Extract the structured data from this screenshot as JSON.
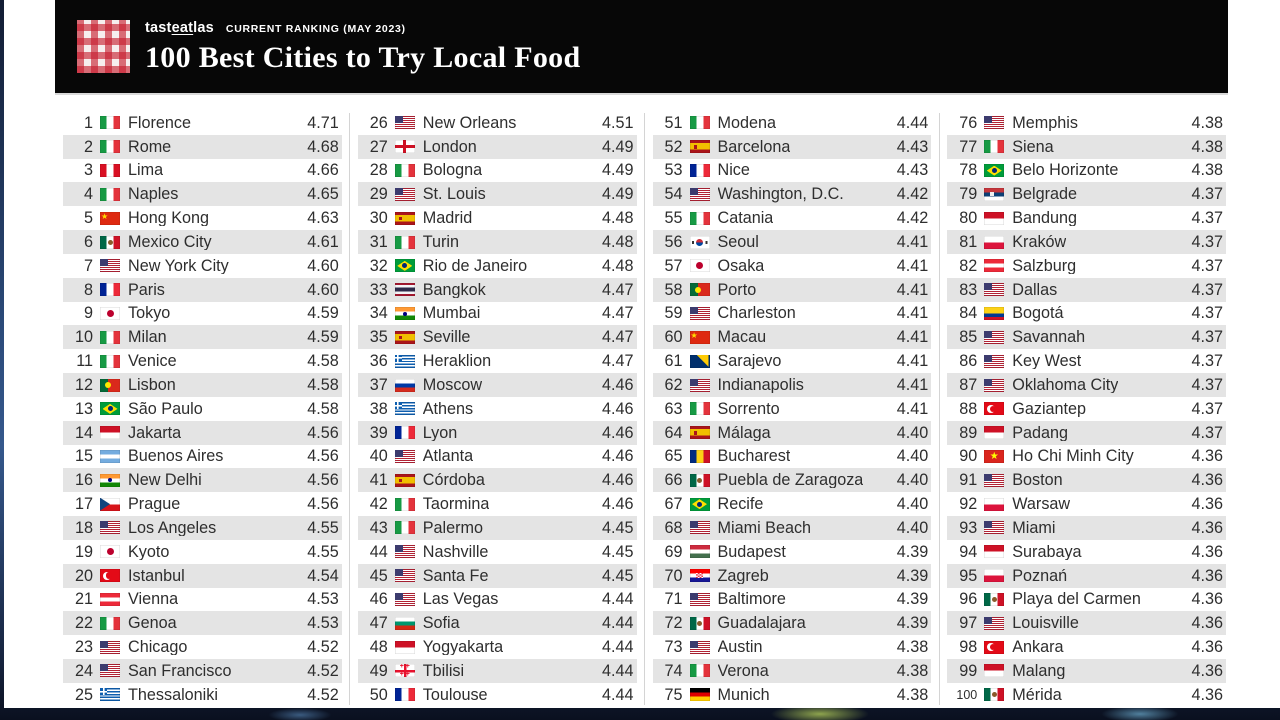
{
  "header": {
    "brand_pre": "tast",
    "brand_underlined": "eat",
    "brand_post": "las",
    "ranking_label": "CURRENT RANKING (MAY 2023)",
    "title": "100 Best Cities to Try Local Food"
  },
  "colors": {
    "header_bg": "#070707",
    "accent_red": "#c61c2d",
    "row_alt": "#e4e4e4",
    "text": "#2e2e2e"
  },
  "chart_data": {
    "type": "table",
    "title": "100 Best Cities to Try Local Food",
    "subtitle": "CURRENT RANKING (MAY 2023)",
    "columns": [
      "rank",
      "country_flag",
      "city",
      "score"
    ],
    "layout": "4 columns of 25 rows, alternating row shading, scores right-aligned",
    "score_range": [
      4.36,
      4.71
    ],
    "rows": [
      {
        "rank": 1,
        "city": "Florence",
        "country": "it",
        "score": "4.71"
      },
      {
        "rank": 2,
        "city": "Rome",
        "country": "it",
        "score": "4.68"
      },
      {
        "rank": 3,
        "city": "Lima",
        "country": "pe",
        "score": "4.66"
      },
      {
        "rank": 4,
        "city": "Naples",
        "country": "it",
        "score": "4.65"
      },
      {
        "rank": 5,
        "city": "Hong Kong",
        "country": "cn",
        "score": "4.63"
      },
      {
        "rank": 6,
        "city": "Mexico City",
        "country": "mx",
        "score": "4.61"
      },
      {
        "rank": 7,
        "city": "New York City",
        "country": "us",
        "score": "4.60"
      },
      {
        "rank": 8,
        "city": "Paris",
        "country": "fr",
        "score": "4.60"
      },
      {
        "rank": 9,
        "city": "Tokyo",
        "country": "jp",
        "score": "4.59"
      },
      {
        "rank": 10,
        "city": "Milan",
        "country": "it",
        "score": "4.59"
      },
      {
        "rank": 11,
        "city": "Venice",
        "country": "it",
        "score": "4.58"
      },
      {
        "rank": 12,
        "city": "Lisbon",
        "country": "pt",
        "score": "4.58"
      },
      {
        "rank": 13,
        "city": "São Paulo",
        "country": "br",
        "score": "4.58"
      },
      {
        "rank": 14,
        "city": "Jakarta",
        "country": "id",
        "score": "4.56"
      },
      {
        "rank": 15,
        "city": "Buenos Aires",
        "country": "ar",
        "score": "4.56"
      },
      {
        "rank": 16,
        "city": "New Delhi",
        "country": "in",
        "score": "4.56"
      },
      {
        "rank": 17,
        "city": "Prague",
        "country": "cz",
        "score": "4.56"
      },
      {
        "rank": 18,
        "city": "Los Angeles",
        "country": "us",
        "score": "4.55"
      },
      {
        "rank": 19,
        "city": "Kyoto",
        "country": "jp",
        "score": "4.55"
      },
      {
        "rank": 20,
        "city": "Istanbul",
        "country": "tr",
        "score": "4.54"
      },
      {
        "rank": 21,
        "city": "Vienna",
        "country": "at",
        "score": "4.53"
      },
      {
        "rank": 22,
        "city": "Genoa",
        "country": "it",
        "score": "4.53"
      },
      {
        "rank": 23,
        "city": "Chicago",
        "country": "us",
        "score": "4.52"
      },
      {
        "rank": 24,
        "city": "San Francisco",
        "country": "us",
        "score": "4.52"
      },
      {
        "rank": 25,
        "city": "Thessaloniki",
        "country": "gr",
        "score": "4.52"
      },
      {
        "rank": 26,
        "city": "New Orleans",
        "country": "us",
        "score": "4.51"
      },
      {
        "rank": 27,
        "city": "London",
        "country": "eng",
        "score": "4.49"
      },
      {
        "rank": 28,
        "city": "Bologna",
        "country": "it",
        "score": "4.49"
      },
      {
        "rank": 29,
        "city": "St. Louis",
        "country": "us",
        "score": "4.49"
      },
      {
        "rank": 30,
        "city": "Madrid",
        "country": "es",
        "score": "4.48"
      },
      {
        "rank": 31,
        "city": "Turin",
        "country": "it",
        "score": "4.48"
      },
      {
        "rank": 32,
        "city": "Rio de Janeiro",
        "country": "br",
        "score": "4.48"
      },
      {
        "rank": 33,
        "city": "Bangkok",
        "country": "th",
        "score": "4.47"
      },
      {
        "rank": 34,
        "city": "Mumbai",
        "country": "in",
        "score": "4.47"
      },
      {
        "rank": 35,
        "city": "Seville",
        "country": "es",
        "score": "4.47"
      },
      {
        "rank": 36,
        "city": "Heraklion",
        "country": "gr",
        "score": "4.47"
      },
      {
        "rank": 37,
        "city": "Moscow",
        "country": "ru",
        "score": "4.46"
      },
      {
        "rank": 38,
        "city": "Athens",
        "country": "gr",
        "score": "4.46"
      },
      {
        "rank": 39,
        "city": "Lyon",
        "country": "fr",
        "score": "4.46"
      },
      {
        "rank": 40,
        "city": "Atlanta",
        "country": "us",
        "score": "4.46"
      },
      {
        "rank": 41,
        "city": "Córdoba",
        "country": "es",
        "score": "4.46"
      },
      {
        "rank": 42,
        "city": "Taormina",
        "country": "it",
        "score": "4.46"
      },
      {
        "rank": 43,
        "city": "Palermo",
        "country": "it",
        "score": "4.45"
      },
      {
        "rank": 44,
        "city": "Nashville",
        "country": "us",
        "score": "4.45"
      },
      {
        "rank": 45,
        "city": "Santa Fe",
        "country": "us",
        "score": "4.45"
      },
      {
        "rank": 46,
        "city": "Las Vegas",
        "country": "us",
        "score": "4.44"
      },
      {
        "rank": 47,
        "city": "Sofia",
        "country": "bg",
        "score": "4.44"
      },
      {
        "rank": 48,
        "city": "Yogyakarta",
        "country": "id",
        "score": "4.44"
      },
      {
        "rank": 49,
        "city": "Tbilisi",
        "country": "ge",
        "score": "4.44"
      },
      {
        "rank": 50,
        "city": "Toulouse",
        "country": "fr",
        "score": "4.44"
      },
      {
        "rank": 51,
        "city": "Modena",
        "country": "it",
        "score": "4.44"
      },
      {
        "rank": 52,
        "city": "Barcelona",
        "country": "es",
        "score": "4.43"
      },
      {
        "rank": 53,
        "city": "Nice",
        "country": "fr",
        "score": "4.43"
      },
      {
        "rank": 54,
        "city": "Washington, D.C.",
        "country": "us",
        "score": "4.42"
      },
      {
        "rank": 55,
        "city": "Catania",
        "country": "it",
        "score": "4.42"
      },
      {
        "rank": 56,
        "city": "Seoul",
        "country": "kr",
        "score": "4.41"
      },
      {
        "rank": 57,
        "city": "Osaka",
        "country": "jp",
        "score": "4.41"
      },
      {
        "rank": 58,
        "city": "Porto",
        "country": "pt",
        "score": "4.41"
      },
      {
        "rank": 59,
        "city": "Charleston",
        "country": "us",
        "score": "4.41"
      },
      {
        "rank": 60,
        "city": "Macau",
        "country": "cn",
        "score": "4.41"
      },
      {
        "rank": 61,
        "city": "Sarajevo",
        "country": "ba",
        "score": "4.41"
      },
      {
        "rank": 62,
        "city": "Indianapolis",
        "country": "us",
        "score": "4.41"
      },
      {
        "rank": 63,
        "city": "Sorrento",
        "country": "it",
        "score": "4.41"
      },
      {
        "rank": 64,
        "city": "Málaga",
        "country": "es",
        "score": "4.40"
      },
      {
        "rank": 65,
        "city": "Bucharest",
        "country": "ro",
        "score": "4.40"
      },
      {
        "rank": 66,
        "city": "Puebla de Zaragoza",
        "country": "mx",
        "score": "4.40"
      },
      {
        "rank": 67,
        "city": "Recife",
        "country": "br",
        "score": "4.40"
      },
      {
        "rank": 68,
        "city": "Miami Beach",
        "country": "us",
        "score": "4.40"
      },
      {
        "rank": 69,
        "city": "Budapest",
        "country": "hu",
        "score": "4.39"
      },
      {
        "rank": 70,
        "city": "Zagreb",
        "country": "hr",
        "score": "4.39"
      },
      {
        "rank": 71,
        "city": "Baltimore",
        "country": "us",
        "score": "4.39"
      },
      {
        "rank": 72,
        "city": "Guadalajara",
        "country": "mx",
        "score": "4.39"
      },
      {
        "rank": 73,
        "city": "Austin",
        "country": "us",
        "score": "4.38"
      },
      {
        "rank": 74,
        "city": "Verona",
        "country": "it",
        "score": "4.38"
      },
      {
        "rank": 75,
        "city": "Munich",
        "country": "de",
        "score": "4.38"
      },
      {
        "rank": 76,
        "city": "Memphis",
        "country": "us",
        "score": "4.38"
      },
      {
        "rank": 77,
        "city": "Siena",
        "country": "it",
        "score": "4.38"
      },
      {
        "rank": 78,
        "city": "Belo Horizonte",
        "country": "br",
        "score": "4.38"
      },
      {
        "rank": 79,
        "city": "Belgrade",
        "country": "rs",
        "score": "4.37"
      },
      {
        "rank": 80,
        "city": "Bandung",
        "country": "id",
        "score": "4.37"
      },
      {
        "rank": 81,
        "city": "Kraków",
        "country": "pl",
        "score": "4.37"
      },
      {
        "rank": 82,
        "city": "Salzburg",
        "country": "at",
        "score": "4.37"
      },
      {
        "rank": 83,
        "city": "Dallas",
        "country": "us",
        "score": "4.37"
      },
      {
        "rank": 84,
        "city": "Bogotá",
        "country": "co",
        "score": "4.37"
      },
      {
        "rank": 85,
        "city": "Savannah",
        "country": "us",
        "score": "4.37"
      },
      {
        "rank": 86,
        "city": "Key West",
        "country": "us",
        "score": "4.37"
      },
      {
        "rank": 87,
        "city": "Oklahoma City",
        "country": "us",
        "score": "4.37"
      },
      {
        "rank": 88,
        "city": "Gaziantep",
        "country": "tr",
        "score": "4.37"
      },
      {
        "rank": 89,
        "city": "Padang",
        "country": "id",
        "score": "4.37"
      },
      {
        "rank": 90,
        "city": "Ho Chi Minh City",
        "country": "vn",
        "score": "4.36"
      },
      {
        "rank": 91,
        "city": "Boston",
        "country": "us",
        "score": "4.36"
      },
      {
        "rank": 92,
        "city": "Warsaw",
        "country": "pl",
        "score": "4.36"
      },
      {
        "rank": 93,
        "city": "Miami",
        "country": "us",
        "score": "4.36"
      },
      {
        "rank": 94,
        "city": "Surabaya",
        "country": "id",
        "score": "4.36"
      },
      {
        "rank": 95,
        "city": "Poznań",
        "country": "pl",
        "score": "4.36"
      },
      {
        "rank": 96,
        "city": "Playa del Carmen",
        "country": "mx",
        "score": "4.36"
      },
      {
        "rank": 97,
        "city": "Louisville",
        "country": "us",
        "score": "4.36"
      },
      {
        "rank": 98,
        "city": "Ankara",
        "country": "tr",
        "score": "4.36"
      },
      {
        "rank": 99,
        "city": "Malang",
        "country": "id",
        "score": "4.36"
      },
      {
        "rank": 100,
        "city": "Mérida",
        "country": "mx",
        "score": "4.36"
      }
    ]
  }
}
